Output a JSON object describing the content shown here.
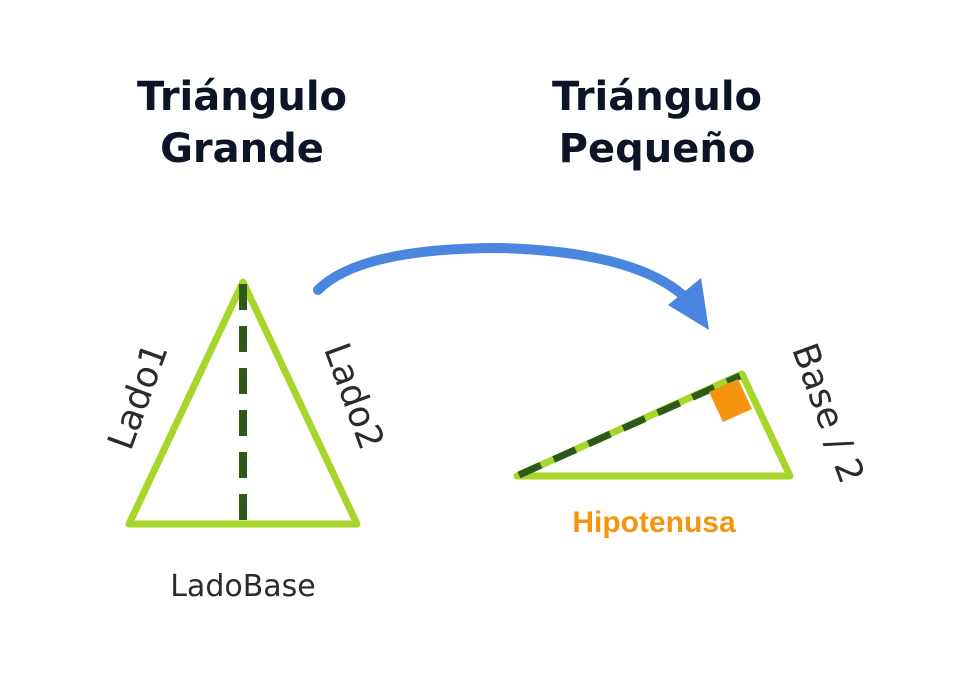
{
  "large_triangle": {
    "title_line1": "Triángulo",
    "title_line2": "Grande",
    "side1_label": "Lado1",
    "side2_label": "Lado2",
    "base_label": "LadoBase"
  },
  "small_triangle": {
    "title_line1": "Triángulo",
    "title_line2": "Pequeño",
    "side_label": "Base / 2",
    "hypotenuse_label": "Hipotenusa"
  },
  "colors": {
    "triangle_stroke": "#a6d62a",
    "dashed_line": "#2d5a1a",
    "arrow": "#4a86e0",
    "right_angle_marker": "#f5950f",
    "hypotenuse_text": "#f5950f",
    "title": "#0d1428",
    "label": "#2b2b2b"
  }
}
